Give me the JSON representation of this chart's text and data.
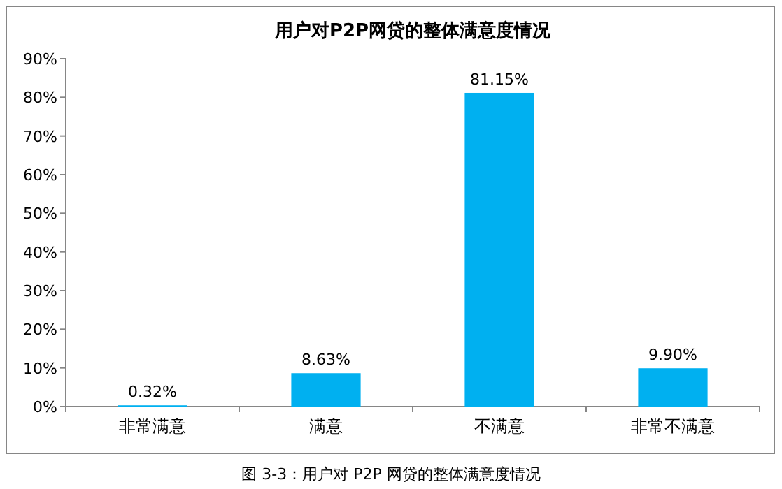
{
  "chart_data": {
    "type": "bar",
    "title": "用户对P2P网贷的整体满意度情况",
    "categories": [
      "非常满意",
      "满意",
      "不满意",
      "非常不满意"
    ],
    "values": [
      0.32,
      8.63,
      81.15,
      9.9
    ],
    "value_labels": [
      "0.32%",
      "8.63%",
      "81.15%",
      "9.90%"
    ],
    "color": "#00b0f0",
    "ylim": [
      0,
      90
    ],
    "yticks": [
      {
        "value": 0,
        "label": "0%"
      },
      {
        "value": 10,
        "label": "10%"
      },
      {
        "value": 20,
        "label": "20%"
      },
      {
        "value": 30,
        "label": "30%"
      },
      {
        "value": 40,
        "label": "40%"
      },
      {
        "value": 50,
        "label": "50%"
      },
      {
        "value": 60,
        "label": "60%"
      },
      {
        "value": 70,
        "label": "70%"
      },
      {
        "value": 80,
        "label": "80%"
      },
      {
        "value": 90,
        "label": "90%"
      }
    ],
    "annotations": [
      "图 3-3：用户对 P2P 网贷的整体满意度情况"
    ]
  }
}
